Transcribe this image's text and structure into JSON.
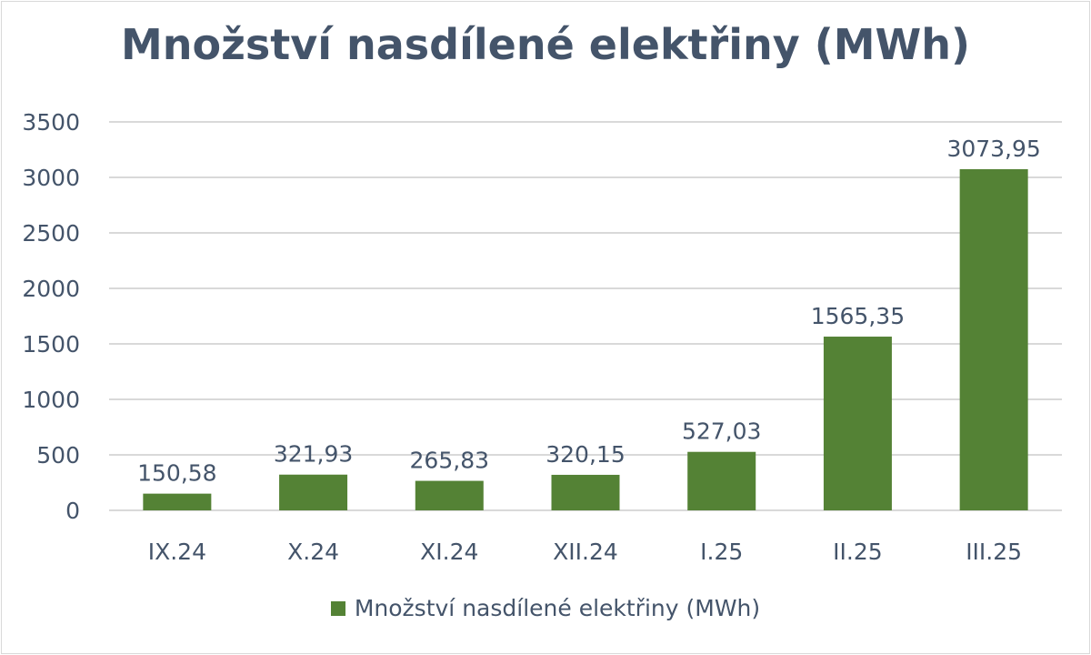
{
  "chart_data": {
    "type": "bar",
    "title": "Množství nasdílené elektřiny (MWh)",
    "categories": [
      "IX.24",
      "X.24",
      "XI.24",
      "XII.24",
      "I.25",
      "II.25",
      "III.25"
    ],
    "series": [
      {
        "name": "Množství nasdílené elektřiny (MWh)",
        "values": [
          150.58,
          321.93,
          265.83,
          320.15,
          527.03,
          1565.35,
          3073.95
        ],
        "labels": [
          "150,58",
          "321,93",
          "265,83",
          "320,15",
          "527,03",
          "1565,35",
          "3073,95"
        ],
        "color": "#548235"
      }
    ],
    "ylim": [
      0,
      3500
    ],
    "yticks": [
      "0",
      "500",
      "1000",
      "1500",
      "2000",
      "2500",
      "3000",
      "3500"
    ],
    "grid": true,
    "legend": "bottom"
  }
}
